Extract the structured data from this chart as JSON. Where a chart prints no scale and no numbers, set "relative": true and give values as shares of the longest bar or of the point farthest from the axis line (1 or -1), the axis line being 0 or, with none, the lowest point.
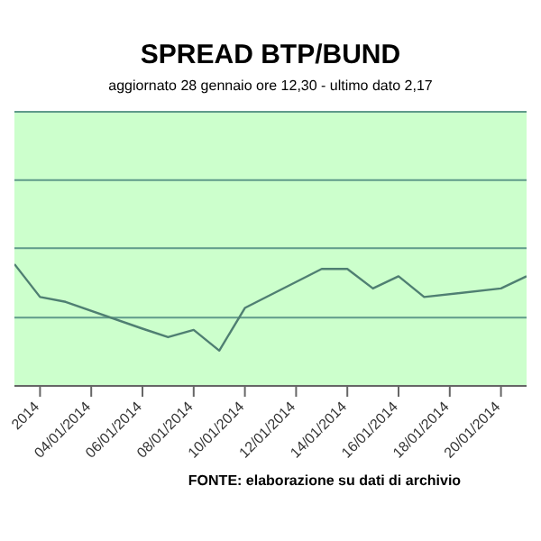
{
  "chart_data": {
    "type": "line",
    "title": "SPREAD BTP/BUND",
    "subtitle": "aggiornato 28 gennaio ore 12,30 - ultimo dato 2,17",
    "annotations": [
      "FONTE: elaborazione su dati di archivio"
    ],
    "relative": true,
    "legend": false,
    "marker": "none",
    "ref_lines": [
      {
        "axis": "y",
        "value": 0.56,
        "color": "#5f9a8a"
      },
      {
        "axis": "y",
        "value": 1.13,
        "color": "#5f9a8a"
      },
      {
        "axis": "y",
        "value": 1.69,
        "color": "#5f9a8a"
      },
      {
        "axis": "y",
        "value": 2.25,
        "color": "#5f9a8a"
      }
    ],
    "x": [
      "2014-01-01",
      "2014-01-02",
      "2014-01-03",
      "2014-01-06",
      "2014-01-07",
      "2014-01-08",
      "2014-01-09",
      "2014-01-10",
      "2014-01-13",
      "2014-01-14",
      "2014-01-15",
      "2014-01-16",
      "2014-01-17",
      "2014-01-20",
      "2014-01-21"
    ],
    "series": [
      {
        "color": "#4f7f72",
        "values": [
          1,
          0.73,
          0.69,
          0.47,
          0.4,
          0.46,
          0.29,
          0.64,
          0.96,
          0.96,
          0.8,
          0.9,
          0.73,
          0.8,
          0.9
        ]
      }
    ],
    "xlim": [
      "2014-01-01",
      "2014-01-21"
    ],
    "xticks": [
      {
        "value": "2014-01-02",
        "label": "2014"
      },
      {
        "value": "2014-01-04",
        "label": "04/01/2014"
      },
      {
        "value": "2014-01-06",
        "label": "06/01/2014"
      },
      {
        "value": "2014-01-08",
        "label": "08/01/2014"
      },
      {
        "value": "2014-01-10",
        "label": "10/01/2014"
      },
      {
        "value": "2014-01-12",
        "label": "12/01/2014"
      },
      {
        "value": "2014-01-14",
        "label": "14/01/2014"
      },
      {
        "value": "2014-01-16",
        "label": "16/01/2014"
      },
      {
        "value": "2014-01-18",
        "label": "18/01/2014"
      },
      {
        "value": "2014-01-20",
        "label": "20/01/2014"
      }
    ]
  }
}
